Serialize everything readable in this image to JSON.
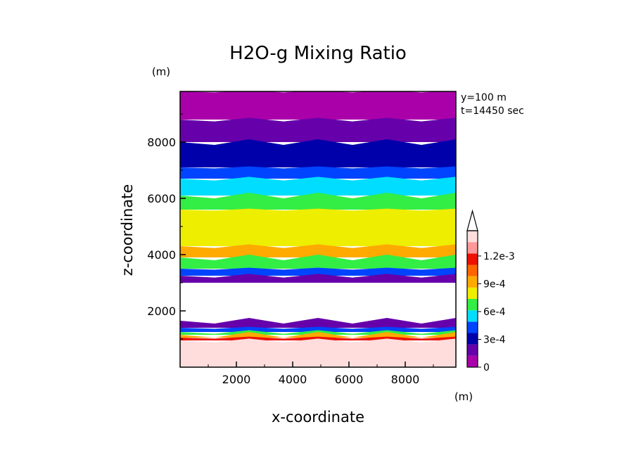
{
  "chart_data": {
    "type": "heatmap",
    "title": "H2O-g Mixing Ratio",
    "xlabel": "x-coordinate",
    "ylabel": "z-coordinate",
    "x_unit": "(m)",
    "y_unit": "(m)",
    "annotations": [
      "y=100  m",
      "t=14450 sec"
    ],
    "xlim": [
      0,
      9800
    ],
    "ylim": [
      0,
      9800
    ],
    "x_ticks": [
      2000,
      4000,
      6000,
      8000
    ],
    "y_ticks": [
      2000,
      4000,
      6000,
      8000
    ],
    "x_tick_labels": [
      "2000",
      "4000",
      "6000",
      "8000"
    ],
    "y_tick_labels": [
      "2000",
      "4000",
      "6000",
      "8000"
    ],
    "colorbar": {
      "levels": [
        0,
        0.00015,
        0.0003,
        0.00045,
        0.0006,
        0.00075,
        0.0009,
        0.00105,
        0.0012,
        0.00135
      ],
      "colors": [
        "#aa00aa",
        "#6600aa",
        "#0000aa",
        "#0044ff",
        "#00ddff",
        "#33ee44",
        "#eeee00",
        "#ffaa00",
        "#ff6600",
        "#ee1100",
        "#ff9999",
        "#ffdddd"
      ],
      "tick_labels": [
        "0",
        "3e-4",
        "6e-4",
        "9e-4",
        "1.2e-3"
      ],
      "tick_values": [
        0,
        0.0003,
        0.0006,
        0.0009,
        0.0012
      ],
      "extend": "max"
    },
    "regions": {
      "no_data_z_range": [
        3000,
        1650
      ],
      "data_note": "horizontal layers; mixing ratio decreases with height; blank band near z=1650-3000 m"
    },
    "layers": [
      {
        "z_top": 9800,
        "z_bottom": 8800,
        "color": "#aa00aa"
      },
      {
        "z_top": 8800,
        "z_bottom": 8000,
        "color": "#6600aa"
      },
      {
        "z_top": 8000,
        "z_bottom": 7100,
        "color": "#0000aa"
      },
      {
        "z_top": 7100,
        "z_bottom": 6700,
        "color": "#0044ff"
      },
      {
        "z_top": 6700,
        "z_bottom": 6100,
        "color": "#00ddff"
      },
      {
        "z_top": 6100,
        "z_bottom": 5600,
        "color": "#33ee44"
      },
      {
        "z_top": 5600,
        "z_bottom": 4300,
        "color": "#eeee00"
      },
      {
        "z_top": 4300,
        "z_bottom": 3900,
        "color": "#ffaa00"
      },
      {
        "z_top": 3900,
        "z_bottom": 3500,
        "color": "#33ee44"
      },
      {
        "z_top": 3500,
        "z_bottom": 3250,
        "color": "#0044ff"
      },
      {
        "z_top": 3250,
        "z_bottom": 3000,
        "color": "#6600aa"
      },
      {
        "z_top": 1650,
        "z_bottom": 1400,
        "color": "#6600aa"
      },
      {
        "z_top": 1400,
        "z_bottom": 1250,
        "color": "#0044ff"
      },
      {
        "z_top": 1250,
        "z_bottom": 1150,
        "color": "#33ee44"
      },
      {
        "z_top": 1150,
        "z_bottom": 1050,
        "color": "#ffaa00"
      },
      {
        "z_top": 1050,
        "z_bottom": 950,
        "color": "#ee1100"
      },
      {
        "z_top": 950,
        "z_bottom": 0,
        "color": "#ffdddd"
      }
    ]
  }
}
